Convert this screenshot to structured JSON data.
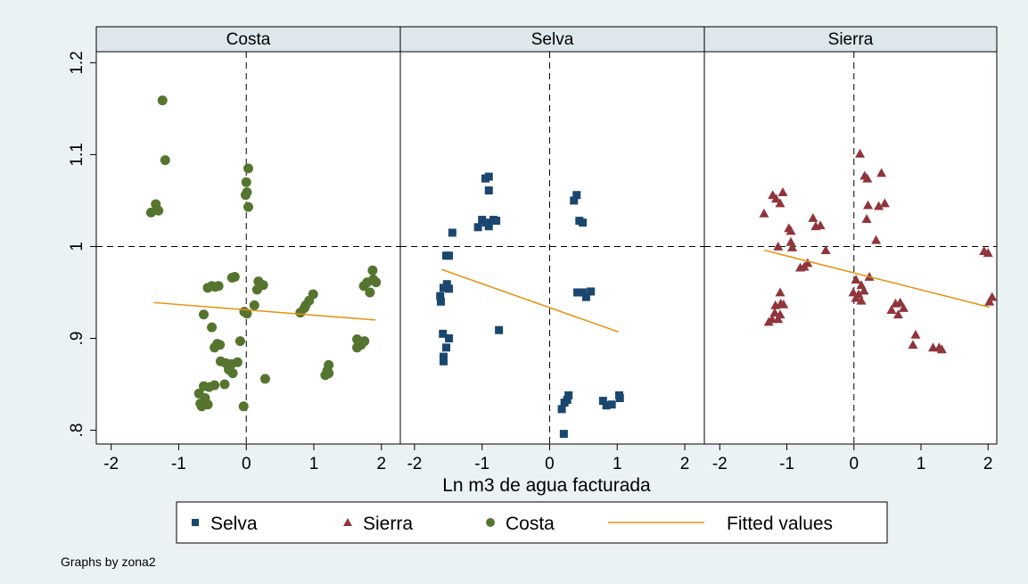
{
  "chart_data": {
    "type": "scatter",
    "x_label": "Ln m3 de agua facturada",
    "note": "Graphs by zona2",
    "ylim": [
      0.785,
      1.212
    ],
    "yticks": [
      {
        "value": 0.8,
        "label": ".8"
      },
      {
        "value": 0.9,
        "label": ".9"
      },
      1,
      1.1,
      1.2
    ],
    "reference_lines": {
      "x": 0,
      "y": 1
    },
    "legend": [
      {
        "name": "Selva",
        "color": "#1a476f",
        "marker": "square"
      },
      {
        "name": "Sierra",
        "color": "#90353b",
        "marker": "triangle"
      },
      {
        "name": "Costa",
        "color": "#55752f",
        "marker": "circle"
      },
      {
        "name": "Fitted values",
        "color": "#e8900d",
        "marker": "line"
      }
    ],
    "panels": [
      {
        "title": "Costa",
        "color": "#55752f",
        "marker": "circle",
        "xlim": [
          -2.22,
          2.28
        ],
        "xticks": [
          -2,
          -1,
          0,
          1,
          2
        ],
        "x": [
          -1.24,
          -1.2,
          -1.34,
          -1.41,
          -1.3,
          0.03,
          0,
          0.01,
          -0.01,
          0.03,
          -0.51,
          -0.46,
          -0.41,
          -0.57,
          -0.21,
          -0.17,
          0.18,
          0.25,
          0.16,
          0.12,
          0.01,
          -0.03,
          -0.63,
          -0.51,
          -0.47,
          -0.43,
          -0.39,
          -0.09,
          -0.38,
          -0.3,
          -0.22,
          -0.26,
          -0.2,
          -0.13,
          -0.47,
          -0.55,
          -0.63,
          -0.7,
          -0.61,
          -0.68,
          -0.57,
          -0.66,
          -0.32,
          -0.04,
          0.28,
          0.99,
          0.93,
          0.88,
          0.86,
          0.8,
          1.22,
          1.2,
          1.17,
          1.22,
          1.64,
          1.75,
          1.7,
          1.64,
          1.87,
          1.88,
          1.92,
          1.79,
          1.74,
          1.83
        ],
        "values": [
          1.159,
          1.094,
          1.046,
          1.037,
          1.039,
          1.085,
          1.07,
          1.059,
          1.056,
          1.043,
          0.957,
          0.956,
          0.957,
          0.955,
          0.966,
          0.967,
          0.962,
          0.958,
          0.953,
          0.936,
          0.927,
          0.929,
          0.926,
          0.912,
          0.89,
          0.894,
          0.893,
          0.897,
          0.875,
          0.873,
          0.872,
          0.866,
          0.862,
          0.874,
          0.849,
          0.847,
          0.848,
          0.84,
          0.835,
          0.829,
          0.828,
          0.826,
          0.85,
          0.826,
          0.856,
          0.948,
          0.941,
          0.936,
          0.933,
          0.928,
          0.871,
          0.865,
          0.86,
          0.862,
          0.899,
          0.897,
          0.893,
          0.89,
          0.974,
          0.964,
          0.961,
          0.961,
          0.957,
          0.95
        ],
        "fit_x": [
          -1.37,
          1.91
        ],
        "fit_values": [
          0.939,
          0.92
        ]
      },
      {
        "title": "Selva",
        "color": "#1a476f",
        "marker": "square",
        "xlim": [
          -2.21,
          2.29
        ],
        "xticks": [
          -2,
          -1,
          0,
          1,
          2
        ],
        "x": [
          -0.9,
          -0.95,
          -0.9,
          -1.0,
          -0.94,
          -0.83,
          -0.79,
          -1.06,
          -0.9,
          -1.44,
          -1.53,
          -1.49,
          -1.52,
          -1.57,
          -1.49,
          -1.62,
          -1.61,
          -1.58,
          -1.49,
          -1.53,
          -1.57,
          -1.57,
          -0.75,
          0.4,
          0.36,
          0.44,
          0.49,
          0.41,
          0.49,
          0.54,
          0.61,
          0.28,
          0.26,
          0.22,
          0.18,
          0.21,
          0.79,
          0.84,
          0.92,
          1.03,
          1.04
        ],
        "values": [
          1.076,
          1.074,
          1.061,
          1.029,
          1.026,
          1.029,
          1.028,
          1.021,
          1.022,
          1.015,
          0.99,
          0.99,
          0.959,
          0.955,
          0.954,
          0.946,
          0.94,
          0.905,
          0.9,
          0.89,
          0.88,
          0.875,
          0.909,
          1.056,
          1.05,
          1.028,
          1.026,
          0.95,
          0.95,
          0.945,
          0.951,
          0.838,
          0.833,
          0.83,
          0.823,
          0.796,
          0.832,
          0.827,
          0.828,
          0.838,
          0.835
        ],
        "fit_x": [
          -1.6,
          1.02
        ],
        "fit_values": [
          0.975,
          0.907
        ]
      },
      {
        "title": "Sierra",
        "color": "#90353b",
        "marker": "triangle",
        "xlim": [
          -2.23,
          2.13
        ],
        "xticks": [
          -2,
          -1,
          0,
          1,
          2
        ],
        "x": [
          0.09,
          0.16,
          0.2,
          0.41,
          0.21,
          0.37,
          0.46,
          0.19,
          0.33,
          -1.06,
          -1.21,
          -1.16,
          -1.1,
          -1.34,
          -0.97,
          -0.94,
          -1.13,
          -0.94,
          -0.92,
          -0.61,
          -0.57,
          -0.5,
          -0.42,
          -0.69,
          -0.74,
          -0.8,
          -1.1,
          -1.09,
          -1.17,
          -1.05,
          -1.18,
          -1.1,
          -1.13,
          -1.27,
          -1.22,
          0.03,
          0.11,
          -0.01,
          0.07,
          0.15,
          0.03,
          0.11,
          0.23,
          0.62,
          0.56,
          0.69,
          0.74,
          0.66,
          0.92,
          0.88,
          1.18,
          1.27,
          1.31,
          1.94,
          2.0,
          2.06,
          2.02
        ],
        "values": [
          1.101,
          1.077,
          1.074,
          1.08,
          1.045,
          1.044,
          1.047,
          1.03,
          1.007,
          1.059,
          1.056,
          1.052,
          1.047,
          1.036,
          1.02,
          1.017,
          1.0,
          1.005,
          0.999,
          1.031,
          1.022,
          1.023,
          0.996,
          0.982,
          0.978,
          0.977,
          0.95,
          0.938,
          0.936,
          0.937,
          0.928,
          0.926,
          0.921,
          0.918,
          0.921,
          0.964,
          0.958,
          0.95,
          0.948,
          0.952,
          0.944,
          0.941,
          0.967,
          0.938,
          0.931,
          0.939,
          0.933,
          0.926,
          0.904,
          0.893,
          0.89,
          0.89,
          0.888,
          0.995,
          0.993,
          0.945,
          0.94
        ],
        "fit_x": [
          -1.34,
          2.02
        ],
        "fit_values": [
          0.996,
          0.934
        ]
      }
    ]
  }
}
